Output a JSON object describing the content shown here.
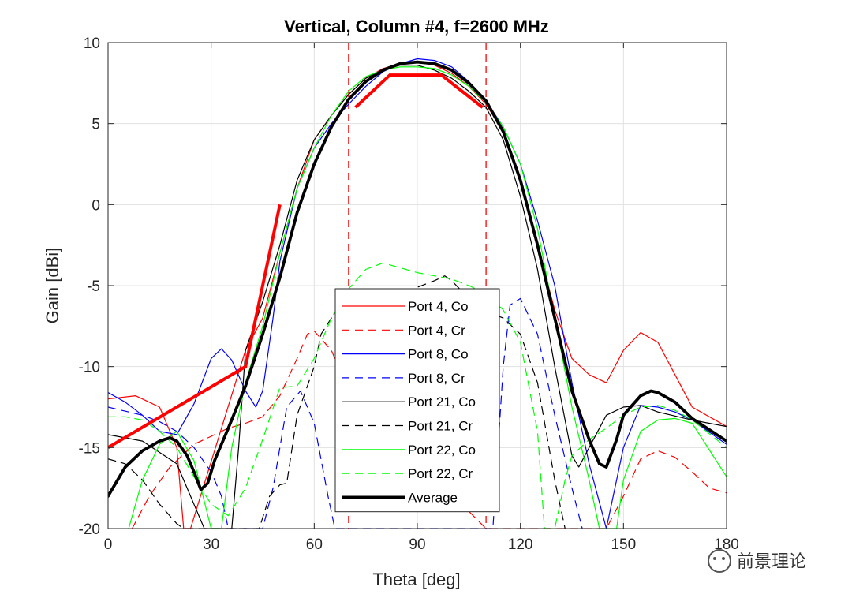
{
  "watermark": {
    "text": "前景理论"
  },
  "chart_data": {
    "type": "line",
    "title": "Vertical, Column #4, f=2600 MHz",
    "xlabel": "Theta [deg]",
    "ylabel": "Gain [dBi]",
    "xlim": [
      0,
      180
    ],
    "ylim": [
      -20,
      10
    ],
    "xticks": [
      0,
      30,
      60,
      90,
      120,
      150,
      180
    ],
    "xtick_labels": [
      "0",
      "30",
      "60",
      "90",
      "120",
      "150",
      "180"
    ],
    "yticks": [
      -20,
      -15,
      -10,
      -5,
      0,
      5,
      10
    ],
    "ytick_labels": [
      "-20",
      "-15",
      "-10",
      "-5",
      "0",
      "5",
      "10"
    ],
    "grid": true,
    "legend_position": "center-bottom",
    "vlines": [
      {
        "x": 70,
        "color": "#ff0000",
        "style": "dashed"
      },
      {
        "x": 110,
        "color": "#ff0000",
        "style": "dashed"
      }
    ],
    "series": [
      {
        "name": "Port 4, Co",
        "color": "#ff0000",
        "style": "solid",
        "width": 1.2,
        "x": [
          0,
          8,
          15,
          20,
          22,
          24,
          40,
          45,
          50,
          55,
          60,
          65,
          70,
          75,
          80,
          85,
          90,
          95,
          100,
          105,
          110,
          115,
          120,
          125,
          130,
          135,
          140,
          145,
          150,
          155,
          160,
          170,
          180
        ],
        "y": [
          -12,
          -11.8,
          -12.5,
          -15,
          -20,
          -20,
          -9,
          -7,
          -3,
          1,
          4,
          5.5,
          6.8,
          7.8,
          8.4,
          8.7,
          8.8,
          8.6,
          8.1,
          7.3,
          6.2,
          4.5,
          1.5,
          -2.5,
          -6.5,
          -9.5,
          -10.5,
          -11,
          -9,
          -7.9,
          -8.5,
          -12.5,
          -13.7
        ]
      },
      {
        "name": "Port 4, Cr",
        "color": "#ff0000",
        "style": "dashed",
        "width": 1.2,
        "x": [
          7,
          12,
          18,
          25,
          30,
          35,
          40,
          45,
          50,
          55,
          58,
          60,
          65,
          70,
          110,
          115,
          120,
          140,
          145,
          150,
          155,
          160,
          165,
          170,
          175,
          180
        ],
        "y": [
          -20,
          -18,
          -16.2,
          -14.8,
          -14.3,
          -13.8,
          -13.5,
          -13.1,
          -11.8,
          -9.5,
          -8,
          -7.8,
          -9,
          -11.5,
          -20,
          -20,
          -20,
          -20,
          -20,
          -18,
          -15.7,
          -15.2,
          -15.6,
          -16.5,
          -17.5,
          -17.8
        ]
      },
      {
        "name": "Port 8, Co",
        "color": "#0000ff",
        "style": "solid",
        "width": 1.2,
        "x": [
          0,
          5,
          10,
          15,
          20,
          25,
          30,
          33,
          36,
          40,
          43,
          45,
          48,
          50,
          55,
          60,
          65,
          70,
          75,
          80,
          85,
          90,
          95,
          100,
          105,
          110,
          115,
          120,
          125,
          130,
          135,
          140,
          145,
          150,
          155,
          160,
          165,
          170,
          180
        ],
        "y": [
          -11.6,
          -12.2,
          -13,
          -14,
          -14.2,
          -12.3,
          -9.5,
          -8.9,
          -9.6,
          -11.5,
          -12.5,
          -11.5,
          -7,
          -3.5,
          1,
          3.5,
          5,
          6.2,
          7.3,
          8.2,
          8.7,
          9,
          8.9,
          8.5,
          7.6,
          6.4,
          4.8,
          2.5,
          -1,
          -5,
          -11,
          -16,
          -20,
          -15,
          -12.4,
          -12.5,
          -12.8,
          -13.3,
          -14.8
        ]
      },
      {
        "name": "Port 8, Cr",
        "color": "#0000ff",
        "style": "dashed",
        "width": 1.2,
        "x": [
          0,
          10,
          15,
          20,
          25,
          30,
          33,
          35,
          36,
          45,
          48,
          52,
          56,
          60,
          64,
          66,
          67,
          112,
          115,
          117,
          120,
          125,
          130,
          135,
          138
        ],
        "y": [
          -12.5,
          -13,
          -13.4,
          -14,
          -15,
          -16.5,
          -18,
          -20,
          -20,
          -20,
          -17.5,
          -12.5,
          -11.5,
          -13.5,
          -18,
          -20,
          -20,
          -20,
          -10,
          -6.2,
          -5.8,
          -8,
          -13,
          -17.5,
          -20
        ]
      },
      {
        "name": "Port 21, Co",
        "color": "#000000",
        "style": "solid",
        "width": 1.2,
        "x": [
          0,
          10,
          20,
          25,
          28,
          30,
          36,
          38,
          40,
          45,
          50,
          55,
          60,
          65,
          70,
          75,
          80,
          85,
          90,
          95,
          100,
          105,
          110,
          115,
          120,
          125,
          130,
          135,
          137,
          140,
          145,
          150,
          155,
          160,
          170,
          180
        ],
        "y": [
          -14.2,
          -14.6,
          -16,
          -18.5,
          -20,
          -20,
          -20,
          -15,
          -9,
          -6,
          -2.5,
          1.5,
          4,
          5.5,
          6.8,
          7.8,
          8.3,
          8.6,
          8.6,
          8.3,
          7.8,
          7,
          6,
          4,
          0.5,
          -4,
          -10,
          -15.5,
          -16.2,
          -15,
          -13,
          -12.5,
          -12.4,
          -12.8,
          -13.3,
          -13.7
        ]
      },
      {
        "name": "Port 21, Cr",
        "color": "#000000",
        "style": "dashed",
        "width": 1.2,
        "x": [
          0,
          5,
          10,
          15,
          20,
          22,
          44,
          47,
          50,
          52,
          55,
          60,
          62,
          65,
          70,
          75,
          80,
          85,
          90,
          95,
          98,
          100,
          105,
          110,
          115,
          120,
          125,
          130,
          133
        ],
        "y": [
          -15.7,
          -16,
          -17,
          -18.5,
          -19.7,
          -20,
          -20,
          -18,
          -17.3,
          -17.2,
          -13,
          -10,
          -8,
          -7,
          -5.8,
          -5.3,
          -5.2,
          -5.5,
          -5.1,
          -4.7,
          -4.4,
          -4.7,
          -5.8,
          -6.6,
          -7,
          -8,
          -11,
          -17,
          -20
        ]
      },
      {
        "name": "Port 22, Co",
        "color": "#00ff00",
        "style": "solid",
        "width": 1.2,
        "x": [
          6,
          8,
          10,
          15,
          20,
          25,
          30,
          33,
          36,
          40,
          45,
          50,
          55,
          60,
          65,
          70,
          75,
          80,
          85,
          90,
          95,
          100,
          105,
          110,
          115,
          120,
          125,
          130,
          135,
          140,
          143,
          145,
          148,
          150,
          155,
          160,
          165,
          170,
          180
        ],
        "y": [
          -20,
          -18.5,
          -17,
          -14.8,
          -14,
          -15.8,
          -20,
          -20,
          -15,
          -11,
          -7.5,
          -3,
          1,
          3.5,
          5.5,
          7,
          7.9,
          8.3,
          8.5,
          8.5,
          8.4,
          8,
          7.3,
          6.3,
          4.8,
          2.5,
          -1.5,
          -7,
          -12.5,
          -17,
          -20,
          -20,
          -20,
          -17,
          -14,
          -13.3,
          -13.2,
          -13.5,
          -16.8
        ]
      },
      {
        "name": "Port 22, Cr",
        "color": "#00ff00",
        "style": "dashed",
        "width": 1.2,
        "x": [
          0,
          5,
          10,
          15,
          20,
          25,
          30,
          35,
          40,
          45,
          50,
          55,
          60,
          65,
          70,
          75,
          80,
          85,
          90,
          95,
          100,
          105,
          110,
          115,
          120,
          125,
          127,
          130,
          133,
          135,
          140,
          145,
          150,
          155,
          160,
          165,
          170,
          180
        ],
        "y": [
          -13.1,
          -13.1,
          -13.3,
          -14,
          -15,
          -16.8,
          -18.5,
          -19.2,
          -17.5,
          -14.5,
          -11.3,
          -11.2,
          -9.5,
          -7,
          -5.2,
          -4,
          -3.6,
          -3.9,
          -4.2,
          -4.4,
          -4.6,
          -5,
          -5.5,
          -6.5,
          -8.5,
          -14,
          -20,
          -20,
          -17,
          -15.5,
          -14.5,
          -13.8,
          -13,
          -12.5,
          -12.4,
          -12.7,
          -13.3,
          -15
        ]
      },
      {
        "name": "Average",
        "color": "#000000",
        "style": "solid",
        "width": 3.8,
        "x": [
          0,
          5,
          10,
          15,
          18,
          20,
          23,
          25,
          27,
          29,
          31,
          35,
          40,
          45,
          50,
          55,
          60,
          65,
          70,
          75,
          80,
          85,
          90,
          95,
          100,
          105,
          110,
          115,
          120,
          125,
          130,
          135,
          140,
          143,
          145,
          148,
          150,
          155,
          158,
          160,
          165,
          170,
          180
        ],
        "y": [
          -18,
          -16.2,
          -15.2,
          -14.6,
          -14.4,
          -14.6,
          -15.5,
          -16.5,
          -17.6,
          -17.2,
          -15.8,
          -13.8,
          -11.2,
          -8,
          -4.5,
          -0.5,
          2.5,
          4.8,
          6.5,
          7.6,
          8.3,
          8.7,
          8.8,
          8.7,
          8.3,
          7.5,
          6.4,
          4.5,
          1.5,
          -2.5,
          -7,
          -11.5,
          -14.5,
          -16,
          -16.2,
          -14.5,
          -13,
          -11.8,
          -11.5,
          -11.6,
          -12.2,
          -13.2,
          -14.6
        ]
      }
    ],
    "mask_series": [
      {
        "color": "#ff0000",
        "width": 4,
        "style": "solid",
        "x": [
          0,
          40,
          50
        ],
        "y": [
          -15,
          -10,
          0
        ]
      },
      {
        "color": "#ff0000",
        "width": 4,
        "style": "solid",
        "x": [
          72,
          82,
          97,
          109
        ],
        "y": [
          6,
          8,
          8,
          6
        ]
      }
    ]
  }
}
